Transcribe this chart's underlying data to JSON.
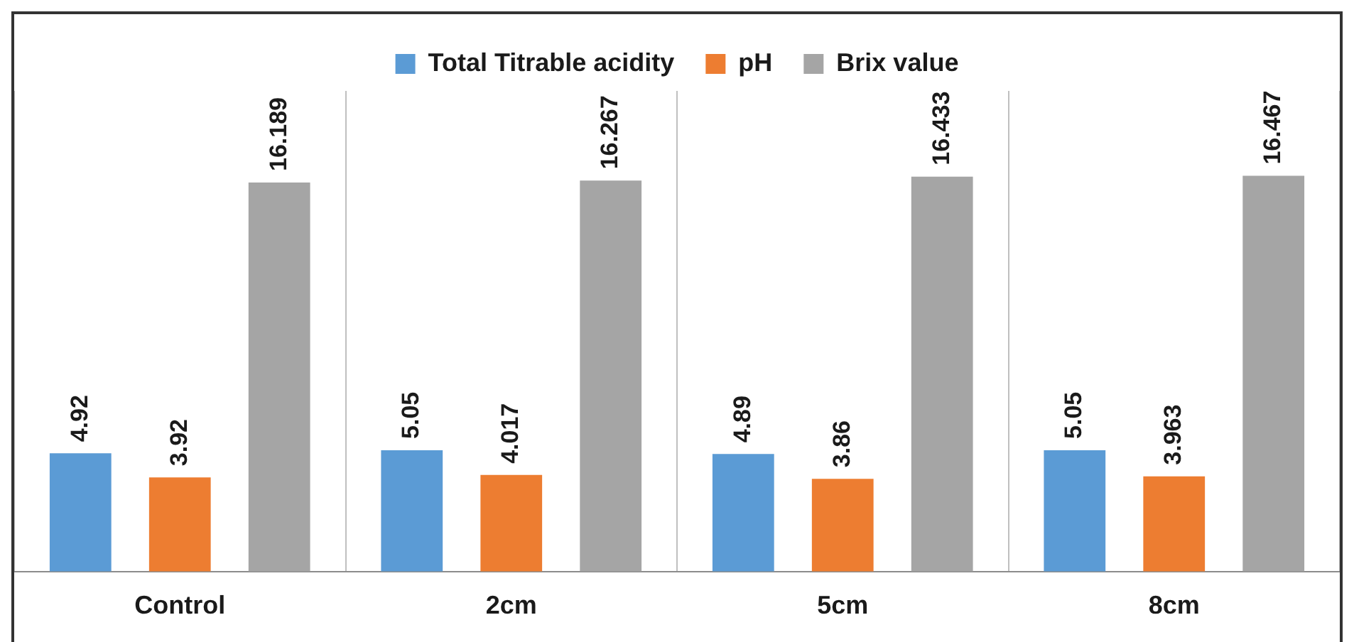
{
  "chart_data": {
    "type": "bar",
    "categories": [
      "Control",
      "2cm",
      "5cm",
      "8cm"
    ],
    "series": [
      {
        "name": "Total Titrable acidity",
        "color": "#5b9bd5",
        "values": [
          4.92,
          5.05,
          4.89,
          5.05
        ]
      },
      {
        "name": "pH",
        "color": "#ed7d31",
        "values": [
          3.92,
          4.017,
          3.86,
          3.963
        ]
      },
      {
        "name": "Brix value",
        "color": "#a5a5a5",
        "values": [
          16.189,
          16.267,
          16.433,
          16.467
        ]
      }
    ],
    "tick_labels": "x",
    "data_labels": true,
    "grid": "x",
    "legend": "top"
  }
}
